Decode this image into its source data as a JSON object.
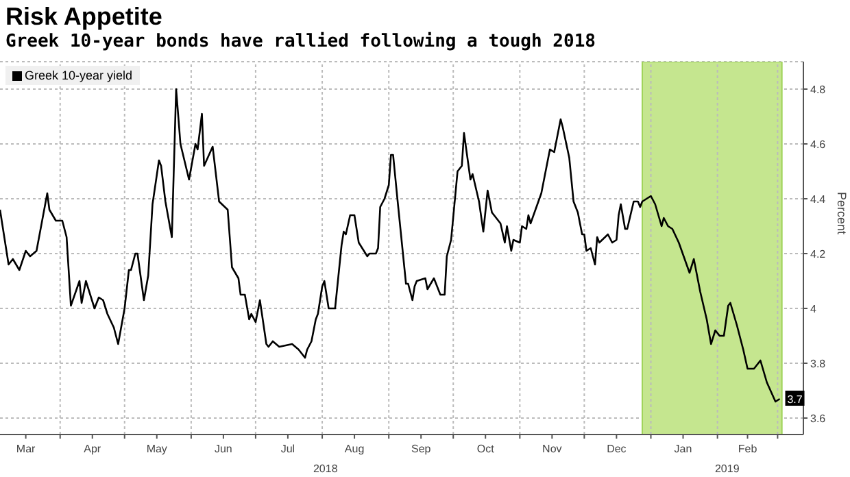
{
  "chart_data": {
    "type": "line",
    "title": "Risk Appetite",
    "subtitle": "Greek 10-year bonds have rallied following a tough 2018",
    "ylabel": "Percent",
    "x": [
      "2018-03-04",
      "2018-03-08",
      "2018-03-10",
      "2018-03-13",
      "2018-03-16",
      "2018-03-18",
      "2018-03-21",
      "2018-03-26",
      "2018-03-27",
      "2018-03-30",
      "2018-04-02",
      "2018-04-04",
      "2018-04-06",
      "2018-04-10",
      "2018-04-11",
      "2018-04-13",
      "2018-04-17",
      "2018-04-19",
      "2018-04-21",
      "2018-04-23",
      "2018-04-26",
      "2018-04-28",
      "2018-05-01",
      "2018-05-03",
      "2018-05-04",
      "2018-05-06",
      "2018-05-07",
      "2018-05-10",
      "2018-05-12",
      "2018-05-14",
      "2018-05-17",
      "2018-05-18",
      "2018-05-20",
      "2018-05-23",
      "2018-05-25",
      "2018-05-27",
      "2018-05-31",
      "2018-06-03",
      "2018-06-04",
      "2018-06-06",
      "2018-06-07",
      "2018-06-11",
      "2018-06-14",
      "2018-06-18",
      "2018-06-20",
      "2018-06-23",
      "2018-06-24",
      "2018-06-26",
      "2018-06-28",
      "2018-06-29",
      "2018-07-01",
      "2018-07-03",
      "2018-07-06",
      "2018-07-07",
      "2018-07-09",
      "2018-07-12",
      "2018-07-18",
      "2018-07-21",
      "2018-07-24",
      "2018-07-25",
      "2018-07-27",
      "2018-07-29",
      "2018-07-30",
      "2018-08-01",
      "2018-08-02",
      "2018-08-04",
      "2018-08-07",
      "2018-08-10",
      "2018-08-11",
      "2018-08-12",
      "2018-08-14",
      "2018-08-16",
      "2018-08-18",
      "2018-08-22",
      "2018-08-23",
      "2018-08-26",
      "2018-08-27",
      "2018-08-28",
      "2018-08-30",
      "2018-09-01",
      "2018-09-02",
      "2018-09-03",
      "2018-09-05",
      "2018-09-09",
      "2018-09-10",
      "2018-09-12",
      "2018-09-13",
      "2018-09-14",
      "2018-09-18",
      "2018-09-19",
      "2018-09-22",
      "2018-09-25",
      "2018-09-27",
      "2018-09-28",
      "2018-09-30",
      "2018-10-03",
      "2018-10-05",
      "2018-10-06",
      "2018-10-09",
      "2018-10-10",
      "2018-10-13",
      "2018-10-15",
      "2018-10-17",
      "2018-10-19",
      "2018-10-23",
      "2018-10-25",
      "2018-10-26",
      "2018-10-28",
      "2018-10-29",
      "2018-11-01",
      "2018-11-02",
      "2018-11-04",
      "2018-11-05",
      "2018-11-06",
      "2018-11-11",
      "2018-11-15",
      "2018-11-17",
      "2018-11-20",
      "2018-11-21",
      "2018-11-24",
      "2018-11-26",
      "2018-11-28",
      "2018-11-30",
      "2018-12-01",
      "2018-12-02",
      "2018-12-04",
      "2018-12-06",
      "2018-12-07",
      "2018-12-08",
      "2018-12-12",
      "2018-12-14",
      "2018-12-16",
      "2018-12-17",
      "2018-12-18",
      "2018-12-20",
      "2018-12-21",
      "2018-12-24",
      "2018-12-26",
      "2018-12-27",
      "2018-12-28",
      "2019-01-01",
      "2019-01-03",
      "2019-01-06",
      "2019-01-07",
      "2019-01-09",
      "2019-01-11",
      "2019-01-14",
      "2019-01-19",
      "2019-01-21",
      "2019-01-24",
      "2019-01-27",
      "2019-01-29",
      "2019-01-31",
      "2019-02-02",
      "2019-02-04",
      "2019-02-06",
      "2019-02-07",
      "2019-02-10",
      "2019-02-13",
      "2019-02-15",
      "2019-02-18",
      "2019-02-21",
      "2019-02-24",
      "2019-02-28",
      "2019-03-02"
    ],
    "series": [
      {
        "name": "Greek 10-year yield",
        "color": "#000000",
        "values": [
          4.36,
          4.16,
          4.18,
          4.14,
          4.21,
          4.19,
          4.21,
          4.42,
          4.36,
          4.32,
          4.32,
          4.26,
          4.01,
          4.1,
          4.02,
          4.1,
          4.0,
          4.04,
          4.03,
          3.98,
          3.93,
          3.87,
          4.0,
          4.14,
          4.14,
          4.2,
          4.2,
          4.03,
          4.12,
          4.38,
          4.54,
          4.52,
          4.39,
          4.26,
          4.8,
          4.6,
          4.47,
          4.6,
          4.58,
          4.71,
          4.52,
          4.59,
          4.39,
          4.36,
          4.15,
          4.11,
          4.05,
          4.05,
          3.96,
          3.98,
          3.95,
          4.03,
          3.87,
          3.86,
          3.88,
          3.86,
          3.87,
          3.85,
          3.82,
          3.85,
          3.88,
          3.96,
          3.98,
          4.08,
          4.1,
          4.0,
          4.0,
          4.23,
          4.28,
          4.27,
          4.34,
          4.34,
          4.24,
          4.19,
          4.2,
          4.2,
          4.22,
          4.37,
          4.4,
          4.45,
          4.56,
          4.56,
          4.4,
          4.09,
          4.09,
          4.03,
          4.08,
          4.1,
          4.11,
          4.07,
          4.11,
          4.05,
          4.05,
          4.19,
          4.25,
          4.5,
          4.52,
          4.64,
          4.47,
          4.49,
          4.39,
          4.28,
          4.43,
          4.35,
          4.31,
          4.24,
          4.3,
          4.21,
          4.25,
          4.24,
          4.3,
          4.29,
          4.34,
          4.31,
          4.42,
          4.58,
          4.57,
          4.69,
          4.66,
          4.55,
          4.39,
          4.35,
          4.27,
          4.27,
          4.21,
          4.22,
          4.16,
          4.26,
          4.24,
          4.27,
          4.24,
          4.25,
          4.34,
          4.38,
          4.29,
          4.29,
          4.39,
          4.39,
          4.37,
          4.39,
          4.41,
          4.38,
          4.3,
          4.33,
          4.3,
          4.29,
          4.24,
          4.13,
          4.18,
          4.06,
          3.96,
          3.87,
          3.92,
          3.9,
          3.9,
          4.01,
          4.02,
          3.94,
          3.85,
          3.78,
          3.78,
          3.81,
          3.73,
          3.66,
          3.67
        ],
        "value_labels": [
          null,
          null,
          null,
          null,
          null,
          null,
          null,
          null,
          null,
          null,
          null,
          null,
          null,
          null,
          null,
          null,
          null,
          null,
          null,
          null,
          null,
          null,
          null,
          null,
          null,
          null,
          null,
          null,
          null,
          null,
          null,
          null,
          null,
          null,
          null,
          null,
          null,
          null,
          null,
          null,
          null,
          null,
          null,
          null,
          null,
          null,
          null,
          null,
          null,
          null,
          null,
          null,
          null,
          null,
          null,
          null,
          null,
          null,
          null,
          null,
          null,
          null,
          null,
          null,
          null,
          null,
          null,
          null,
          null,
          null,
          null,
          null,
          null,
          null,
          null,
          null,
          null,
          null,
          null,
          null,
          null,
          null,
          null,
          null,
          null,
          null,
          null,
          null,
          null,
          null,
          null,
          null,
          null,
          null,
          null,
          null,
          null,
          null,
          null,
          null,
          null,
          null,
          null,
          null,
          null,
          null,
          null,
          null,
          null,
          null,
          null,
          null,
          null,
          null,
          null,
          null,
          null,
          null,
          null,
          null,
          null,
          null,
          null,
          null,
          null,
          null,
          null,
          null,
          null,
          null,
          null,
          null,
          null,
          null,
          null,
          null,
          null,
          null,
          null,
          null,
          null,
          null,
          null,
          null,
          null,
          null,
          null,
          null,
          null,
          null,
          null,
          null,
          null,
          null,
          null,
          null,
          null,
          null,
          null,
          null,
          null,
          null,
          null,
          null,
          "3.7"
        ]
      }
    ],
    "xlim": [
      "2018-03-04",
      "2019-03-13"
    ],
    "xticks": [
      {
        "value": "2018-03-16",
        "label": "Mar"
      },
      {
        "value": "2018-04-01",
        "label": null
      },
      {
        "value": "2018-04-16",
        "label": "Apr"
      },
      {
        "value": "2018-05-01",
        "label": null
      },
      {
        "value": "2018-05-16",
        "label": "May"
      },
      {
        "value": "2018-06-01",
        "label": null
      },
      {
        "value": "2018-06-16",
        "label": "Jun"
      },
      {
        "value": "2018-07-01",
        "label": null
      },
      {
        "value": "2018-07-16",
        "label": "Jul"
      },
      {
        "value": "2018-08-01",
        "label": null
      },
      {
        "value": "2018-08-16",
        "label": "Aug"
      },
      {
        "value": "2018-09-01",
        "label": null
      },
      {
        "value": "2018-09-16",
        "label": "Sep"
      },
      {
        "value": "2018-10-01",
        "label": null
      },
      {
        "value": "2018-10-16",
        "label": "Oct"
      },
      {
        "value": "2018-11-01",
        "label": null
      },
      {
        "value": "2018-11-16",
        "label": "Nov"
      },
      {
        "value": "2018-12-01",
        "label": null
      },
      {
        "value": "2018-12-16",
        "label": "Dec"
      },
      {
        "value": "2019-01-01",
        "label": null
      },
      {
        "value": "2019-01-16",
        "label": "Jan"
      },
      {
        "value": "2019-02-01",
        "label": null
      },
      {
        "value": "2019-02-15",
        "label": "Feb"
      },
      {
        "value": "2019-03-01",
        "label": null
      }
    ],
    "ylim": [
      3.54,
      4.9
    ],
    "yticks": [
      3.6,
      3.8,
      4.0,
      4.2,
      4.4,
      4.6,
      4.8
    ],
    "bands": [
      {
        "axis": "x",
        "from": "2018-12-28",
        "to": "2019-03-03",
        "color": "#c5e68f"
      }
    ],
    "annotations": [
      "2018",
      "2019"
    ],
    "grid": true,
    "legend": "top left",
    "marker": "none",
    "line_style": "solid"
  }
}
